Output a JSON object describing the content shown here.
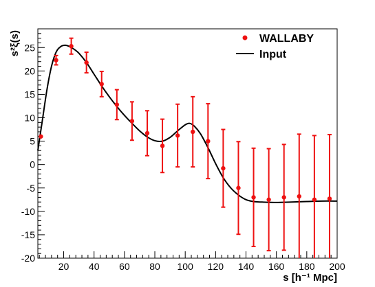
{
  "chart_data": {
    "type": "scatter",
    "title": "",
    "xlabel": "s [h⁻¹ Mpc]",
    "ylabel": "s²ξ(s)",
    "xlim": [
      3,
      200
    ],
    "ylim": [
      -20,
      29
    ],
    "x_ticks": [
      20,
      40,
      60,
      80,
      100,
      120,
      140,
      160,
      180,
      200
    ],
    "y_ticks": [
      -20,
      -15,
      -10,
      -5,
      0,
      5,
      10,
      15,
      20,
      25
    ],
    "grid": false,
    "legend_position": "top-right",
    "series": [
      {
        "name": "WALLABY",
        "kind": "points_with_errorbars",
        "color": "#ee1111",
        "points": [
          {
            "x": 5,
            "y": 6.0,
            "err": 0
          },
          {
            "x": 15,
            "y": 22.3,
            "err": 1.0
          },
          {
            "x": 25,
            "y": 25.3,
            "err": 1.7
          },
          {
            "x": 35,
            "y": 21.8,
            "err": 2.2
          },
          {
            "x": 45,
            "y": 17.2,
            "err": 2.7
          },
          {
            "x": 55,
            "y": 12.8,
            "err": 3.2
          },
          {
            "x": 65,
            "y": 9.3,
            "err": 4.1
          },
          {
            "x": 75,
            "y": 6.7,
            "err": 4.8
          },
          {
            "x": 85,
            "y": 4.0,
            "err": 5.7
          },
          {
            "x": 95,
            "y": 6.2,
            "err": 6.7
          },
          {
            "x": 105,
            "y": 7.0,
            "err": 7.5
          },
          {
            "x": 115,
            "y": 5.0,
            "err": 8.0
          },
          {
            "x": 125,
            "y": -0.8,
            "err": 8.3
          },
          {
            "x": 135,
            "y": -5.0,
            "err": 9.9
          },
          {
            "x": 145,
            "y": -7.0,
            "err": 10.5
          },
          {
            "x": 155,
            "y": -7.5,
            "err": 10.9
          },
          {
            "x": 165,
            "y": -7.0,
            "err": 11.3
          },
          {
            "x": 175,
            "y": -6.8,
            "err": 13.3
          },
          {
            "x": 185,
            "y": -7.5,
            "err": 13.7
          },
          {
            "x": 195,
            "y": -7.3,
            "err": 13.7
          }
        ]
      },
      {
        "name": "Input",
        "kind": "line",
        "color": "#000000",
        "x": [
          3,
          6,
          9,
          12,
          15,
          18,
          21,
          24,
          27,
          30,
          35,
          40,
          45,
          50,
          55,
          60,
          65,
          70,
          75,
          80,
          85,
          90,
          95,
          100,
          103,
          106,
          110,
          115,
          120,
          125,
          130,
          135,
          140,
          145,
          150,
          160,
          170,
          180,
          190,
          200
        ],
        "y": [
          3.0,
          9.5,
          16.0,
          21.0,
          24.0,
          25.2,
          25.5,
          25.2,
          24.6,
          23.8,
          21.8,
          19.3,
          16.8,
          14.5,
          12.4,
          10.5,
          8.8,
          7.2,
          5.9,
          5.1,
          5.0,
          5.8,
          7.2,
          8.5,
          8.8,
          8.2,
          6.6,
          3.6,
          0.2,
          -2.8,
          -5.0,
          -6.5,
          -7.5,
          -7.9,
          -8.0,
          -8.1,
          -8.0,
          -7.9,
          -7.8,
          -7.8
        ]
      }
    ]
  }
}
